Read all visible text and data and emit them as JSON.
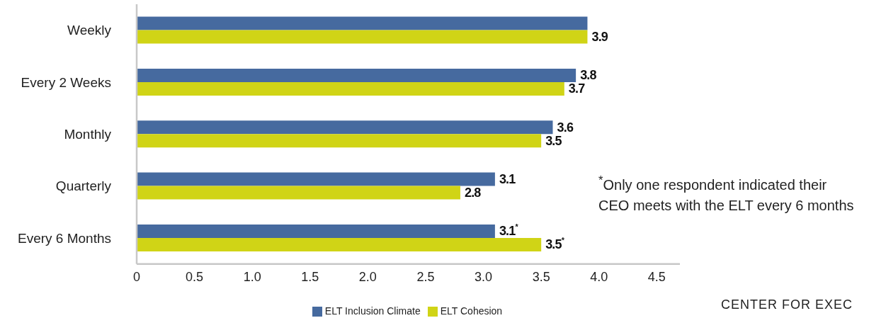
{
  "chart_data": {
    "type": "bar",
    "orientation": "horizontal",
    "categories": [
      "Weekly",
      "Every 2 Weeks",
      "Monthly",
      "Quarterly",
      "Every 6 Months"
    ],
    "series": [
      {
        "name": "ELT Inclusion Climate",
        "color": "#466a9f",
        "values": [
          3.9,
          3.8,
          3.6,
          3.1,
          3.1
        ],
        "value_labels": [
          null,
          "3.8",
          "3.6",
          "3.1",
          "3.1$^{*}$"
        ]
      },
      {
        "name": "ELT Cohesion",
        "color": "#d0d416",
        "values": [
          3.9,
          3.7,
          3.5,
          2.8,
          3.5
        ],
        "value_labels": [
          "3.9",
          "3.7",
          "3.5",
          "2.8",
          "3.5$^{*}$"
        ]
      }
    ],
    "xlim": [
      0,
      4.7
    ],
    "xticks": [
      0,
      0.5,
      {
        "value": 1,
        "label": "1.0"
      },
      1.5,
      {
        "value": 2,
        "label": "2.0"
      },
      2.5,
      {
        "value": 3,
        "label": "3.0"
      },
      3.5,
      {
        "value": 4,
        "label": "4.0"
      },
      4.5
    ],
    "legend": "bottom",
    "annotations": [
      "$^{*}$Only one respondent indicated their CEO meets with the ELT every 6 months",
      "CENTER FOR EXEC"
    ]
  }
}
